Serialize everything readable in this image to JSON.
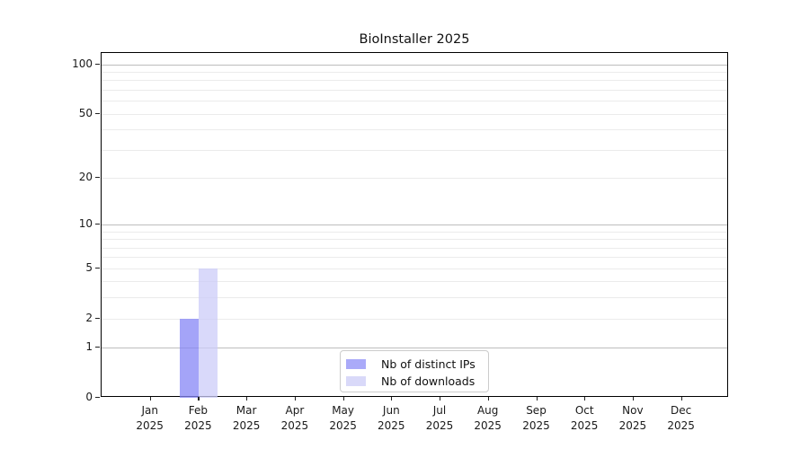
{
  "chart_data": {
    "type": "bar",
    "title": "BioInstaller 2025",
    "x_months": [
      "Jan",
      "Feb",
      "Mar",
      "Apr",
      "May",
      "Jun",
      "Jul",
      "Aug",
      "Sep",
      "Oct",
      "Nov",
      "Dec"
    ],
    "x_year_label": "2025",
    "series": [
      {
        "name": "Nb of distinct IPs",
        "color": "#aaaaf9",
        "fill": "rgba(134,134,246,0.75)",
        "values": [
          0,
          2,
          0,
          0,
          0,
          0,
          0,
          0,
          0,
          0,
          0,
          0
        ]
      },
      {
        "name": "Nb of downloads",
        "color": "#d9d9f9",
        "fill": "rgba(204,204,248,0.75)",
        "values": [
          0,
          5,
          0,
          0,
          0,
          0,
          0,
          0,
          0,
          0,
          0,
          0
        ]
      }
    ],
    "y_axis": {
      "scale": "log1p",
      "tick_values": [
        100,
        50,
        20,
        10,
        5,
        2,
        1,
        0
      ],
      "tick_labels": [
        "100",
        "50",
        "20",
        "10",
        "5",
        "2",
        "1",
        "0"
      ],
      "major_gridlines": [
        100,
        10,
        1
      ],
      "minor_gridlines": [
        90,
        80,
        70,
        60,
        50,
        40,
        30,
        20,
        9,
        8,
        7,
        6,
        5,
        4,
        3,
        2
      ],
      "ylim": [
        0,
        100
      ]
    },
    "legend_position": "lower center inside plot",
    "grid": "horizontal only"
  },
  "colors": {
    "major_grid": "#bdbdbd",
    "minor_grid": "#ebebeb",
    "spine": "#000000",
    "text": "#1a1a1a",
    "background": "#ffffff"
  }
}
